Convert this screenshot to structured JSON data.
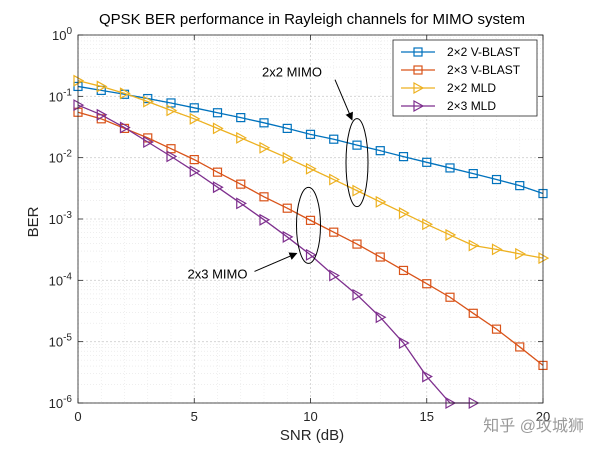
{
  "chart_data": {
    "type": "line",
    "title": "QPSK BER performance in Rayleigh channels for MIMO system",
    "xlabel": "SNR (dB)",
    "ylabel": "BER",
    "xlim": [
      0,
      20
    ],
    "ylim_log10": [
      -6,
      0
    ],
    "yscale": "log",
    "grid": true,
    "legend_position": "top-right",
    "x_ticks": [
      "0",
      "5",
      "10",
      "15",
      "20"
    ],
    "y_ticks": [
      {
        "base": "10",
        "exp": "0",
        "value": 1
      },
      {
        "base": "10",
        "exp": "-1",
        "value": 0.1
      },
      {
        "base": "10",
        "exp": "-2",
        "value": 0.01
      },
      {
        "base": "10",
        "exp": "-3",
        "value": 0.001
      },
      {
        "base": "10",
        "exp": "-4",
        "value": 0.0001
      },
      {
        "base": "10",
        "exp": "-5",
        "value": 1e-05
      },
      {
        "base": "10",
        "exp": "-6",
        "value": 1e-06
      }
    ],
    "series": [
      {
        "name": "2×2 V-BLAST",
        "color": "#0072BD",
        "marker": "square",
        "x": [
          0,
          1,
          2,
          3,
          4,
          5,
          6,
          7,
          8,
          9,
          10,
          11,
          12,
          13,
          14,
          15,
          16,
          17,
          18,
          19,
          20
        ],
        "y": [
          0.145,
          0.125,
          0.108,
          0.092,
          0.078,
          0.065,
          0.054,
          0.045,
          0.037,
          0.03,
          0.024,
          0.02,
          0.016,
          0.013,
          0.0104,
          0.0084,
          0.0068,
          0.0055,
          0.0044,
          0.0035,
          0.0026
        ]
      },
      {
        "name": "2×3 V-BLAST",
        "color": "#D95319",
        "marker": "square",
        "x": [
          0,
          1,
          2,
          3,
          4,
          5,
          6,
          7,
          8,
          9,
          10,
          11,
          12,
          13,
          14,
          15,
          16,
          17,
          18,
          19,
          20
        ],
        "y": [
          0.055,
          0.043,
          0.03,
          0.021,
          0.014,
          0.0093,
          0.0058,
          0.0037,
          0.0023,
          0.0015,
          0.00095,
          0.00061,
          0.00039,
          0.00024,
          0.000145,
          8.8e-05,
          5.3e-05,
          2.9e-05,
          1.6e-05,
          8.2e-06,
          4.1e-06
        ]
      },
      {
        "name": "2×2 MLD",
        "color": "#EDB120",
        "marker": "triangle-right",
        "x": [
          0,
          1,
          2,
          3,
          4,
          5,
          6,
          7,
          8,
          9,
          10,
          11,
          12,
          13,
          14,
          15,
          16,
          17,
          18,
          19,
          20
        ],
        "y": [
          0.18,
          0.145,
          0.112,
          0.082,
          0.059,
          0.043,
          0.03,
          0.021,
          0.0145,
          0.0099,
          0.0066,
          0.0044,
          0.0029,
          0.0019,
          0.00125,
          0.00082,
          0.00055,
          0.00037,
          0.00032,
          0.00027,
          0.00023
        ]
      },
      {
        "name": "2×3 MLD",
        "color": "#7E2F8E",
        "marker": "triangle-right",
        "x": [
          0,
          1,
          2,
          3,
          4,
          5,
          6,
          7,
          8,
          9,
          10,
          11,
          12,
          13,
          14,
          15,
          16,
          17
        ],
        "y": [
          0.072,
          0.05,
          0.031,
          0.018,
          0.0105,
          0.006,
          0.0033,
          0.0018,
          0.00097,
          0.00051,
          0.00026,
          0.00012,
          5.8e-05,
          2.5e-05,
          9.5e-06,
          2.7e-06,
          1e-06,
          1e-06
        ]
      }
    ],
    "annotations": [
      {
        "text": "2x2 MIMO",
        "target_x": 12,
        "target_y": 0.01
      },
      {
        "text": "2x3 MIMO",
        "target_x": 10,
        "target_y": 0.0004
      }
    ]
  },
  "watermark": "知乎 @攻城狮"
}
